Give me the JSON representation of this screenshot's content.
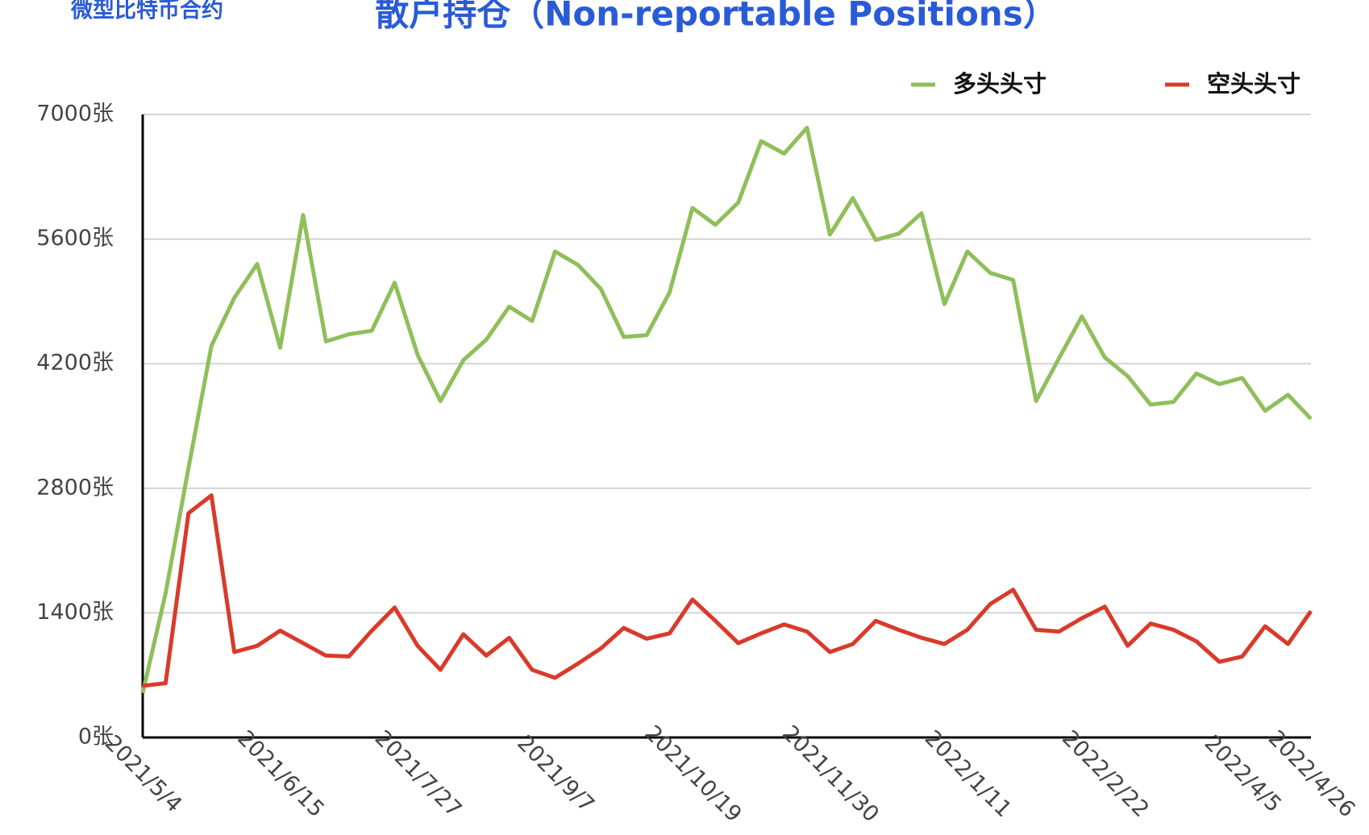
{
  "chart_data": {
    "type": "line",
    "title": "散户持仓（Non-reportable Positions）",
    "subtitle": "微型比特币合约",
    "categories": [
      "2021/5/4",
      null,
      null,
      null,
      null,
      null,
      "2021/6/15",
      null,
      null,
      null,
      null,
      null,
      "2021/7/27",
      null,
      null,
      null,
      null,
      null,
      "2021/9/7",
      null,
      null,
      null,
      null,
      null,
      "2021/10/19",
      null,
      null,
      null,
      null,
      null,
      "2021/11/30",
      null,
      null,
      null,
      null,
      null,
      "2022/1/11",
      null,
      null,
      null,
      null,
      null,
      "2022/2/22",
      null,
      null,
      null,
      null,
      null,
      "2022/4/5",
      null,
      null,
      "2022/4/26"
    ],
    "series": [
      {
        "name": "多头头寸",
        "color": "#8fbf5a",
        "values": [
          500,
          1620,
          3030,
          4400,
          4940,
          5320,
          4380,
          5870,
          4450,
          4530,
          4570,
          5110,
          4300,
          3780,
          4240,
          4470,
          4840,
          4680,
          5460,
          5310,
          5040,
          4500,
          4520,
          5000,
          5950,
          5760,
          6010,
          6700,
          6560,
          6850,
          5650,
          6060,
          5590,
          5660,
          5890,
          4870,
          5460,
          5220,
          5140,
          3780,
          4260,
          4730,
          4270,
          4060,
          3740,
          3770,
          4090,
          3970,
          4040,
          3670,
          3850,
          3580
        ]
      },
      {
        "name": "空头头寸",
        "color": "#d93a2b",
        "values": [
          580,
          610,
          2520,
          2720,
          960,
          1030,
          1200,
          1060,
          920,
          910,
          1200,
          1460,
          1030,
          760,
          1160,
          920,
          1120,
          760,
          670,
          830,
          1000,
          1230,
          1110,
          1170,
          1550,
          1310,
          1060,
          1170,
          1270,
          1190,
          960,
          1050,
          1310,
          1210,
          1120,
          1050,
          1210,
          1500,
          1660,
          1210,
          1190,
          1340,
          1470,
          1030,
          1280,
          1210,
          1080,
          850,
          910,
          1250,
          1050,
          1420
        ]
      }
    ],
    "ylim": [
      0,
      7000
    ],
    "yticks": [
      {
        "value": 0,
        "label": "0张"
      },
      {
        "value": 1400,
        "label": "1400张"
      },
      {
        "value": 2800,
        "label": "2800张"
      },
      {
        "value": 4200,
        "label": "4200张"
      },
      {
        "value": 5600,
        "label": "5600张"
      },
      {
        "value": 7000,
        "label": "7000张"
      }
    ],
    "grid": true,
    "legend": "top-right"
  }
}
